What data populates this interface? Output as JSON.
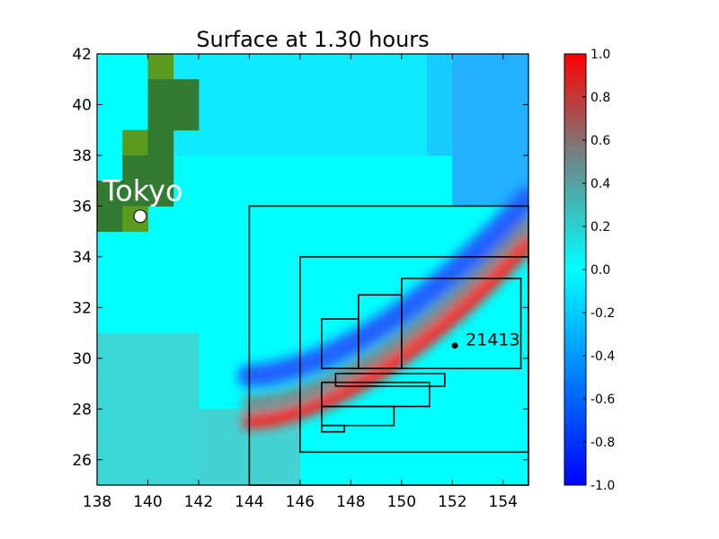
{
  "chart_data": {
    "type": "heatmap",
    "title": "Surface at 1.30 hours",
    "xlabel": "",
    "ylabel": "",
    "xlim": [
      138,
      155
    ],
    "ylim": [
      25,
      42
    ],
    "x_ticks": [
      "138",
      "140",
      "142",
      "144",
      "146",
      "148",
      "150",
      "152",
      "154"
    ],
    "y_ticks": [
      "26",
      "28",
      "30",
      "32",
      "34",
      "36",
      "38",
      "40",
      "42"
    ],
    "colorbar": {
      "min": -1.0,
      "max": 1.0,
      "ticks": [
        "-1.0",
        "-0.8",
        "-0.6",
        "-0.4",
        "-0.2",
        "0.0",
        "0.2",
        "0.4",
        "0.6",
        "0.8",
        "1.0"
      ],
      "colors": [
        "#0000ff",
        "#00ffff",
        "#ff0000"
      ]
    },
    "annotations": [
      {
        "text": "Tokyo",
        "lon": 139.7,
        "lat": 35.6,
        "text_color": "#ffffff",
        "marker": "white-circle"
      },
      {
        "text": "21413",
        "lon": 152.1,
        "lat": 30.5,
        "text_color": "#000000",
        "marker": "black-dot"
      }
    ],
    "regions": [
      {
        "x": [
          144,
          155
        ],
        "y": [
          25,
          36
        ]
      },
      {
        "x": [
          146,
          155
        ],
        "y": [
          26.3,
          34
        ]
      },
      {
        "x": [
          147.4,
          151.7
        ],
        "y": [
          28.9,
          29.4
        ]
      },
      {
        "x": [
          146.85,
          148.3
        ],
        "y": [
          29.6,
          31.55
        ]
      },
      {
        "x": [
          148.3,
          150
        ],
        "y": [
          29.6,
          32.5
        ]
      },
      {
        "x": [
          150,
          154.7
        ],
        "y": [
          29.6,
          33.15
        ]
      },
      {
        "x": [
          146.85,
          151.1
        ],
        "y": [
          28.1,
          29.05
        ]
      },
      {
        "x": [
          146.85,
          149.7
        ],
        "y": [
          27.35,
          28.1
        ]
      },
      {
        "x": [
          146.85,
          147.75
        ],
        "y": [
          27.1,
          27.35
        ]
      }
    ],
    "land_color": "#337a33",
    "land_highlight_color": "#5a9a1f"
  }
}
